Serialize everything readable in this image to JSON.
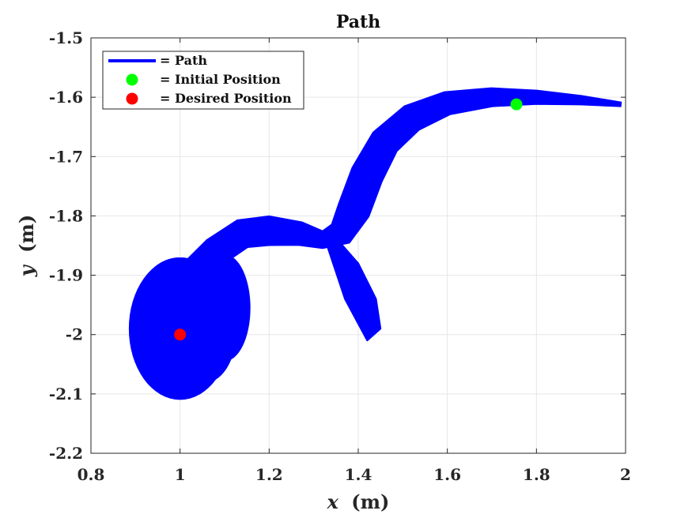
{
  "chart_data": {
    "type": "line",
    "title": "Path",
    "xlabel_var": "x",
    "xlabel_unit": "(m)",
    "ylabel_var": "y",
    "ylabel_unit": "(m)",
    "xlim": [
      0.8,
      2.0
    ],
    "ylim": [
      -2.2,
      -1.5
    ],
    "xticks": [
      0.8,
      1.0,
      1.2,
      1.4,
      1.6,
      1.8,
      2.0
    ],
    "xtick_labels": [
      "0.8",
      "1",
      "1.2",
      "1.4",
      "1.6",
      "1.8",
      "2"
    ],
    "yticks": [
      -1.5,
      -1.6,
      -1.7,
      -1.8,
      -1.9,
      -2.0,
      -2.1,
      -2.2
    ],
    "ytick_labels": [
      "-1.5",
      "-1.6",
      "-1.7",
      "-1.8",
      "-1.9",
      "-2",
      "-2.1",
      "-2.2"
    ],
    "grid": true,
    "legend_position": "top-left",
    "legend": [
      {
        "label": "= Path",
        "kind": "line",
        "color": "#0000ff"
      },
      {
        "label": "= Initial Position",
        "kind": "marker",
        "color": "#00ff00"
      },
      {
        "label": "= Desired Position",
        "kind": "marker",
        "color": "#ff0000"
      }
    ],
    "series": [
      {
        "name": "Path",
        "color": "#0000ff",
        "centerline": [
          [
            1.99,
            -1.612
          ],
          [
            1.9,
            -1.605
          ],
          [
            1.8,
            -1.6
          ],
          [
            1.7,
            -1.6
          ],
          [
            1.6,
            -1.61
          ],
          [
            1.52,
            -1.635
          ],
          [
            1.46,
            -1.675
          ],
          [
            1.42,
            -1.73
          ],
          [
            1.39,
            -1.79
          ],
          [
            1.36,
            -1.83
          ],
          [
            1.32,
            -1.84
          ],
          [
            1.27,
            -1.83
          ],
          [
            1.2,
            -1.825
          ],
          [
            1.14,
            -1.83
          ],
          [
            1.08,
            -1.86
          ],
          [
            1.04,
            -1.89
          ]
        ],
        "tube_halfwidths": [
          0.004,
          0.008,
          0.012,
          0.016,
          0.02,
          0.024,
          0.026,
          0.028,
          0.028,
          0.022,
          0.015,
          0.02,
          0.025,
          0.025,
          0.025,
          0.025
        ],
        "blobs": [
          {
            "shape": "ellipse",
            "cx": 1.0,
            "cy": -1.99,
            "rx": 0.115,
            "ry": 0.12
          },
          {
            "shape": "ellipse",
            "cx": 1.06,
            "cy": -1.98,
            "rx": 0.07,
            "ry": 0.1
          },
          {
            "shape": "ellipse",
            "cx": 1.1,
            "cy": -1.955,
            "rx": 0.058,
            "ry": 0.09
          },
          {
            "shape": "ellipse",
            "cx": 1.0,
            "cy": -1.94,
            "rx": 0.09,
            "ry": 0.07
          },
          {
            "shape": "lobe",
            "points": [
              [
                1.35,
                -1.83
              ],
              [
                1.33,
                -1.85
              ],
              [
                1.37,
                -1.94
              ],
              [
                1.42,
                -2.01
              ],
              [
                1.45,
                -1.99
              ],
              [
                1.44,
                -1.94
              ],
              [
                1.4,
                -1.88
              ],
              [
                1.365,
                -1.85
              ]
            ]
          }
        ]
      }
    ],
    "points": [
      {
        "name": "Initial Position",
        "x": 1.755,
        "y": -1.612,
        "color": "#00ff00"
      },
      {
        "name": "Desired Position",
        "x": 1.0,
        "y": -2.0,
        "color": "#ff0000"
      }
    ]
  }
}
